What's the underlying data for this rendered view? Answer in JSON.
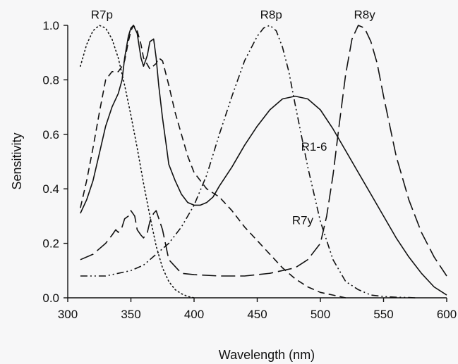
{
  "chart_data": {
    "type": "line",
    "xlabel": "Wavelength (nm)",
    "ylabel": "Sensitivity",
    "xlim": [
      300,
      600
    ],
    "ylim": [
      0.0,
      1.0
    ],
    "xticks": [
      300,
      350,
      400,
      450,
      500,
      550,
      600
    ],
    "yticks": [
      0.0,
      0.2,
      0.4,
      0.6,
      0.8,
      1.0
    ],
    "xtick_labels": [
      "300",
      "350",
      "400",
      "450",
      "500",
      "550",
      "600"
    ],
    "ytick_labels": [
      "0.0",
      "0.2",
      "0.4",
      "0.6",
      "0.8",
      "1.0"
    ],
    "grid": false,
    "line_color": "#111111",
    "series": [
      {
        "name": "R7p",
        "style": "dotted",
        "x": [
          310,
          315,
          320,
          325,
          330,
          335,
          340,
          345,
          350,
          355,
          360,
          365,
          370,
          375,
          380,
          385,
          390,
          395,
          400
        ],
        "y": [
          0.85,
          0.93,
          0.98,
          1.0,
          0.99,
          0.95,
          0.88,
          0.78,
          0.67,
          0.55,
          0.42,
          0.3,
          0.19,
          0.11,
          0.06,
          0.03,
          0.015,
          0.005,
          0.0
        ]
      },
      {
        "name": "R1-6",
        "style": "solid",
        "x": [
          310,
          315,
          320,
          325,
          330,
          335,
          340,
          343,
          345,
          348,
          350,
          352,
          355,
          358,
          360,
          363,
          365,
          368,
          370,
          372,
          375,
          378,
          380,
          385,
          390,
          395,
          400,
          405,
          410,
          415,
          420,
          430,
          440,
          450,
          460,
          470,
          480,
          490,
          500,
          510,
          520,
          530,
          540,
          550,
          560,
          570,
          580,
          590,
          600
        ],
        "y": [
          0.31,
          0.36,
          0.43,
          0.53,
          0.63,
          0.7,
          0.75,
          0.8,
          0.88,
          0.96,
          0.99,
          1.0,
          0.97,
          0.88,
          0.85,
          0.89,
          0.94,
          0.95,
          0.88,
          0.78,
          0.66,
          0.56,
          0.49,
          0.43,
          0.38,
          0.35,
          0.34,
          0.34,
          0.35,
          0.37,
          0.41,
          0.48,
          0.56,
          0.63,
          0.69,
          0.73,
          0.74,
          0.73,
          0.69,
          0.62,
          0.54,
          0.46,
          0.38,
          0.3,
          0.22,
          0.15,
          0.09,
          0.04,
          0.01
        ]
      },
      {
        "name": "R7y",
        "style": "dashed",
        "x": [
          310,
          315,
          320,
          325,
          330,
          335,
          340,
          343,
          345,
          348,
          350,
          352,
          355,
          358,
          360,
          365,
          370,
          372,
          375,
          380,
          385,
          390,
          395,
          400,
          410,
          420,
          430,
          440,
          450,
          460,
          470,
          480,
          490,
          500,
          510,
          520
        ],
        "y": [
          0.33,
          0.43,
          0.55,
          0.68,
          0.8,
          0.83,
          0.83,
          0.85,
          0.87,
          0.94,
          0.98,
          1.0,
          0.98,
          0.93,
          0.88,
          0.84,
          0.86,
          0.88,
          0.87,
          0.78,
          0.68,
          0.6,
          0.52,
          0.46,
          0.4,
          0.37,
          0.32,
          0.26,
          0.21,
          0.16,
          0.11,
          0.07,
          0.04,
          0.02,
          0.01,
          0.0
        ]
      },
      {
        "name": "R8p",
        "style": "dash-dot-dot",
        "x": [
          310,
          320,
          330,
          340,
          350,
          360,
          370,
          380,
          390,
          400,
          410,
          420,
          430,
          440,
          450,
          455,
          460,
          465,
          470,
          475,
          480,
          490,
          500,
          510,
          520,
          530,
          540,
          550,
          560,
          570,
          575
        ],
        "y": [
          0.08,
          0.08,
          0.08,
          0.09,
          0.1,
          0.12,
          0.16,
          0.2,
          0.26,
          0.34,
          0.45,
          0.6,
          0.74,
          0.87,
          0.96,
          0.99,
          1.0,
          0.98,
          0.92,
          0.83,
          0.71,
          0.48,
          0.28,
          0.14,
          0.06,
          0.03,
          0.01,
          0.005,
          0.002,
          0.001,
          0.0
        ]
      },
      {
        "name": "R8y",
        "style": "long-dashed",
        "x": [
          310,
          320,
          330,
          335,
          338,
          340,
          343,
          345,
          348,
          350,
          353,
          355,
          358,
          360,
          363,
          365,
          368,
          370,
          375,
          380,
          390,
          400,
          420,
          440,
          460,
          480,
          490,
          500,
          505,
          510,
          515,
          520,
          525,
          530,
          535,
          540,
          545,
          550,
          560,
          570,
          580,
          590,
          600
        ],
        "y": [
          0.14,
          0.16,
          0.2,
          0.23,
          0.25,
          0.24,
          0.26,
          0.29,
          0.3,
          0.32,
          0.3,
          0.25,
          0.23,
          0.22,
          0.24,
          0.28,
          0.31,
          0.32,
          0.25,
          0.14,
          0.09,
          0.085,
          0.08,
          0.08,
          0.09,
          0.11,
          0.14,
          0.2,
          0.3,
          0.45,
          0.64,
          0.82,
          0.95,
          1.0,
          0.99,
          0.94,
          0.86,
          0.74,
          0.52,
          0.36,
          0.24,
          0.15,
          0.08
        ]
      }
    ],
    "annotations": [
      {
        "text": "R7p",
        "x": 327,
        "y": 1.025
      },
      {
        "text": "R8p",
        "x": 461,
        "y": 1.025
      },
      {
        "text": "R8y",
        "x": 535,
        "y": 1.025
      },
      {
        "text": "R1-6",
        "x": 495,
        "y": 0.54
      },
      {
        "text": "R7y",
        "x": 486,
        "y": 0.27
      }
    ]
  }
}
